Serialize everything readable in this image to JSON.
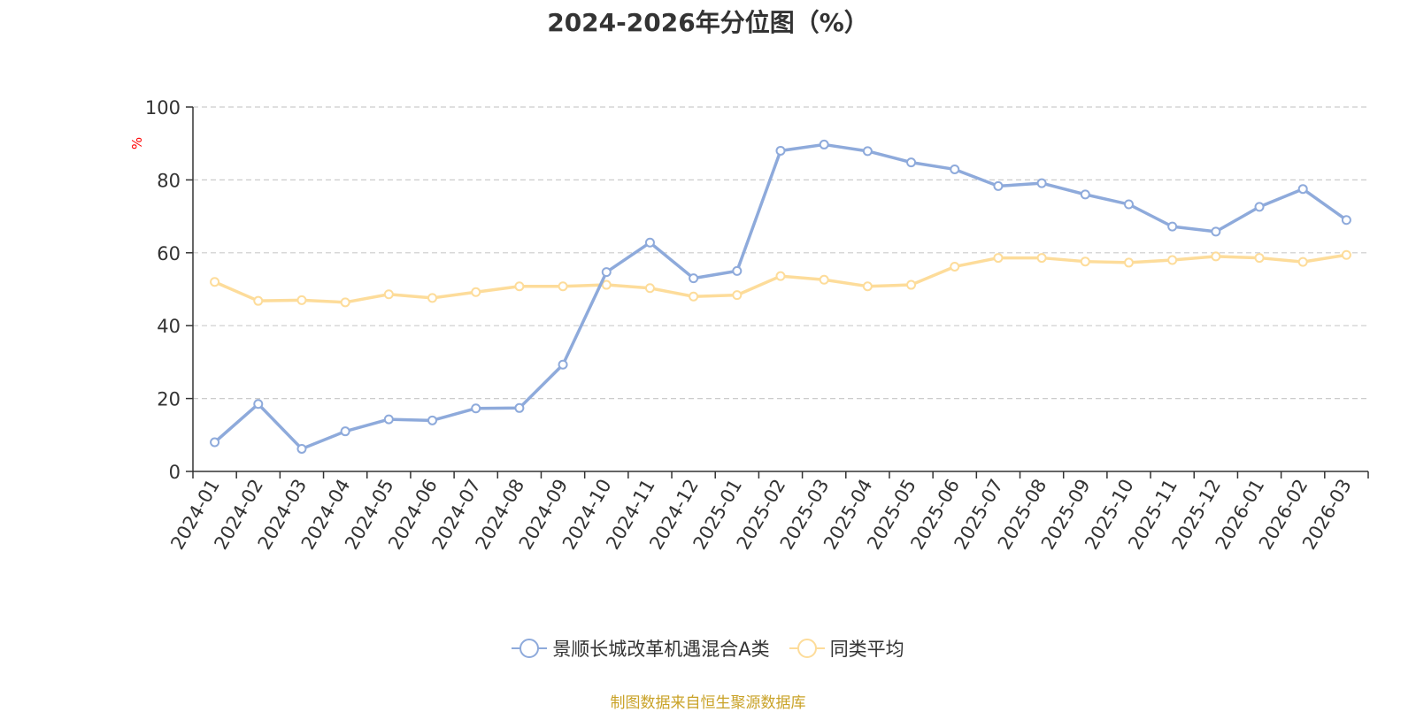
{
  "title": "2024-2026年分位图（%）",
  "source": "制图数据来自恒生聚源数据库",
  "colors": {
    "series_1": "#8eaadb",
    "series_2": "#fddc9a",
    "axis": "#333333",
    "grid": "#cccccc",
    "unit": "#ff0000",
    "source": "#c9a227"
  },
  "chart_data": {
    "type": "line",
    "title": "2024-2026年分位图（%）",
    "ylabel": "%",
    "xlabel": "",
    "ylim": [
      0,
      100
    ],
    "yticks": [
      0,
      20,
      40,
      60,
      80,
      100
    ],
    "grid": true,
    "legend_position": "bottom-center",
    "categories": [
      "2024-01",
      "2024-02",
      "2024-03",
      "2024-04",
      "2024-05",
      "2024-06",
      "2024-07",
      "2024-08",
      "2024-09",
      "2024-10",
      "2024-11",
      "2024-12",
      "2025-01",
      "2025-02",
      "2025-03",
      "2025-04",
      "2025-05",
      "2025-06",
      "2025-07",
      "2025-08",
      "2025-09",
      "2025-10",
      "2025-11",
      "2025-12",
      "2026-01",
      "2026-02",
      "2026-03"
    ],
    "series": [
      {
        "name": "景顺长城改革机遇混合A类",
        "values": [
          8,
          18.5,
          6.2,
          11,
          14.3,
          14,
          17.3,
          17.4,
          29.3,
          54.7,
          62.8,
          53,
          55,
          88,
          89.7,
          87.9,
          84.8,
          82.9,
          78.3,
          79.1,
          76,
          73.3,
          67.2,
          65.8,
          72.6,
          77.5,
          69
        ]
      },
      {
        "name": "同类平均",
        "values": [
          52,
          46.8,
          47,
          46.4,
          48.6,
          47.6,
          49.2,
          50.8,
          50.8,
          51.2,
          50.3,
          48,
          48.4,
          53.6,
          52.6,
          50.8,
          51.2,
          56.2,
          58.6,
          58.6,
          57.6,
          57.3,
          58,
          59,
          58.6,
          57.5,
          59.4
        ]
      }
    ]
  }
}
